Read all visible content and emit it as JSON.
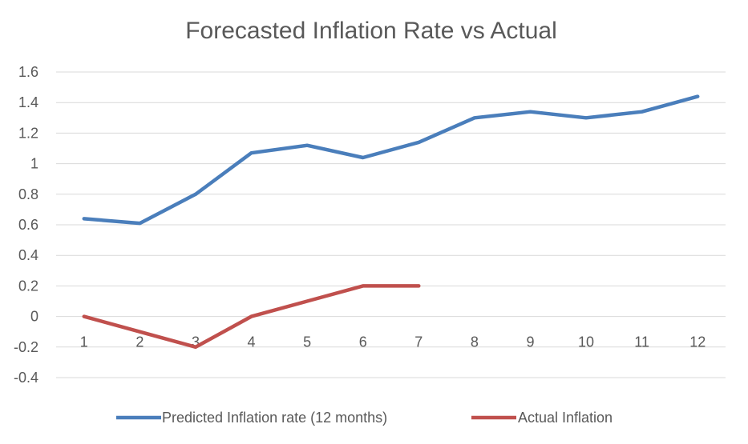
{
  "chart_data": {
    "type": "line",
    "title": "Forecasted Inflation Rate vs Actual",
    "xlabel": "",
    "ylabel": "",
    "categories": [
      "1",
      "2",
      "3",
      "4",
      "5",
      "6",
      "7",
      "8",
      "9",
      "10",
      "11",
      "12"
    ],
    "y_ticks": [
      "1.6",
      "1.4",
      "1.2",
      "1",
      "0.8",
      "0.6",
      "0.4",
      "0.2",
      "0",
      "-0.2",
      "-0.4"
    ],
    "ylim": [
      -0.4,
      1.6
    ],
    "grid": true,
    "legend_position": "bottom",
    "series": [
      {
        "name": "Predicted Inflation rate (12 months)",
        "color": "#4a7ebb",
        "values": [
          0.64,
          0.61,
          0.8,
          1.07,
          1.12,
          1.04,
          1.14,
          1.3,
          1.34,
          1.3,
          1.34,
          1.44
        ]
      },
      {
        "name": "Actual Inflation",
        "color": "#c0504d",
        "values": [
          0.0,
          -0.1,
          -0.2,
          0.0,
          0.1,
          0.2,
          0.2,
          null,
          null,
          null,
          null,
          null
        ]
      }
    ]
  }
}
